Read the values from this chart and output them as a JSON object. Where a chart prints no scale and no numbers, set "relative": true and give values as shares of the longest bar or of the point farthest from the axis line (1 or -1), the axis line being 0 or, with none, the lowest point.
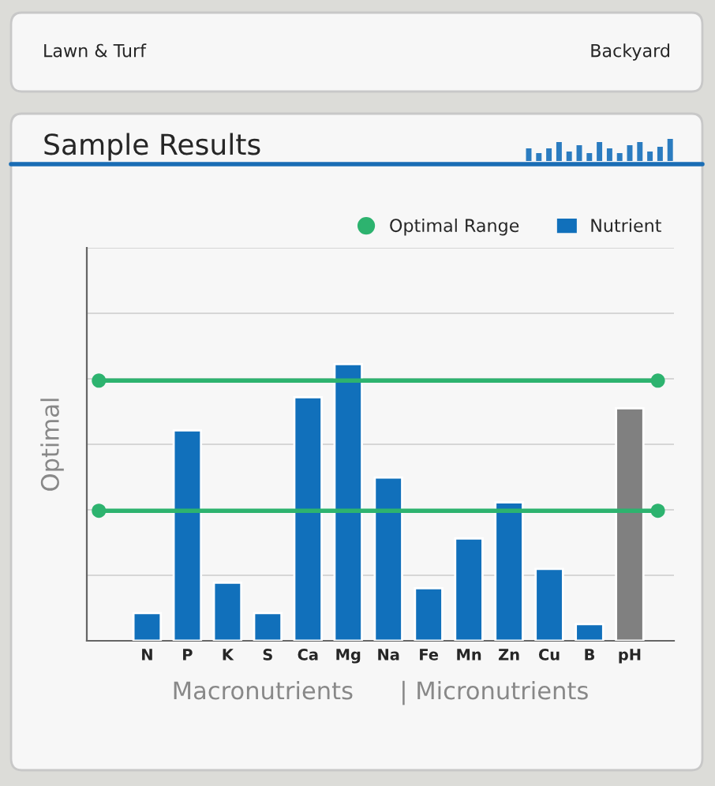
{
  "chart_data": {
    "type": "bar",
    "title": "Sample Results",
    "ylabel": "Optimal",
    "xlabel": "Macronutrients      | Micronutrients",
    "annotations": [
      "Lawn & Turf",
      "Backyard"
    ],
    "categories": [
      "N",
      "P",
      "K",
      "S",
      "Ca",
      "Mg",
      "Na",
      "Fe",
      "Mn",
      "Zn",
      "Cu",
      "B",
      "pH"
    ],
    "series": [
      {
        "name": "Nutrient",
        "color": "#1170bb",
        "values": [
          0.1,
          0.76,
          0.21,
          0.1,
          0.88,
          1,
          0.59,
          0.19,
          0.37,
          0.5,
          0.26,
          0.06,
          0.84
        ],
        "colors": [
          "#1170bb",
          "#1170bb",
          "#1170bb",
          "#1170bb",
          "#1170bb",
          "#1170bb",
          "#1170bb",
          "#1170bb",
          "#1170bb",
          "#1170bb",
          "#1170bb",
          "#1170bb",
          "#808080"
        ]
      }
    ],
    "relative": true,
    "ref_lines": [
      {
        "axis": "y",
        "value": 0.94,
        "label": "Optimal Range",
        "color": "#2db36f"
      },
      {
        "axis": "y",
        "value": 0.47,
        "color": "#2db36f"
      }
    ],
    "grid": "y",
    "legend": "top right"
  }
}
